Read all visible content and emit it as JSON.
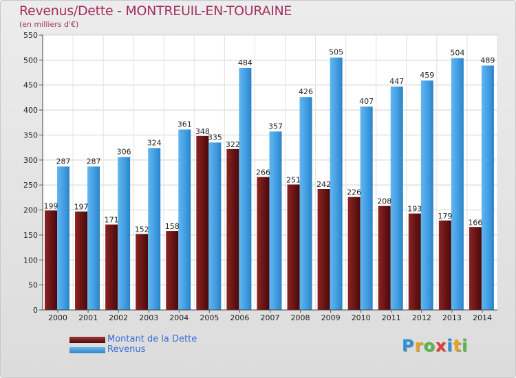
{
  "header": {
    "title": "Revenus/Dette - MONTREUIL-EN-TOURAINE",
    "subtitle": "(en milliers d'€)"
  },
  "chart_data": {
    "type": "bar",
    "categories": [
      "2000",
      "2001",
      "2002",
      "2003",
      "2004",
      "2005",
      "2006",
      "2007",
      "2008",
      "2009",
      "2010",
      "2011",
      "2012",
      "2013",
      "2014"
    ],
    "series": [
      {
        "name": "Montant de la Dette",
        "values": [
          199,
          197,
          171,
          152,
          158,
          348,
          322,
          266,
          251,
          242,
          226,
          208,
          193,
          179,
          166
        ],
        "color": "#6e1a1a"
      },
      {
        "name": "Revenus",
        "values": [
          287,
          287,
          306,
          324,
          361,
          335,
          484,
          357,
          426,
          505,
          407,
          447,
          459,
          504,
          489
        ],
        "color": "#3f9be0"
      }
    ],
    "ylim": [
      0,
      550
    ],
    "yticks": [
      0,
      50,
      100,
      150,
      200,
      250,
      300,
      350,
      400,
      450,
      500,
      550
    ],
    "grid": true,
    "legend_position": "bottom-left"
  },
  "legend": {
    "debt_label": "Montant de la Dette",
    "revenue_label": "Revenus"
  },
  "logo": {
    "letters": [
      {
        "ch": "P",
        "color": "#2f8fd8"
      },
      {
        "ch": "r",
        "color": "#e8a317"
      },
      {
        "ch": "o",
        "color": "#58b847"
      },
      {
        "ch": "x",
        "color": "#e03c31"
      },
      {
        "ch": "i",
        "color": "#2f8fd8"
      },
      {
        "ch": "t",
        "color": "#e8a317"
      },
      {
        "ch": "i",
        "color": "#58b847"
      }
    ]
  }
}
